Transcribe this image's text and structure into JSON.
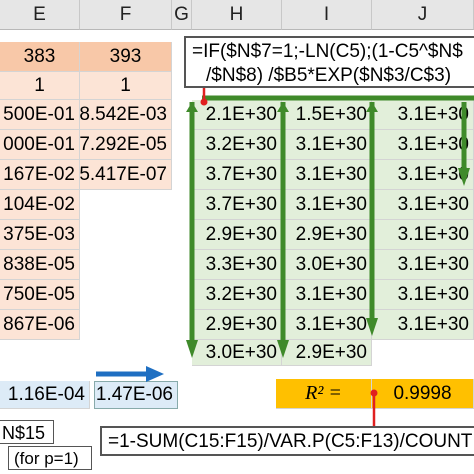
{
  "headers": {
    "E": "E",
    "F": "F",
    "G": "G",
    "H": "H",
    "I": "I",
    "J": "J"
  },
  "row_top": {
    "e": "383",
    "f": "393"
  },
  "row_ones": {
    "e": "1",
    "f": "1"
  },
  "col_e": [
    "500E-01",
    "000E-01",
    "167E-02",
    "104E-02",
    "375E-03",
    "838E-05",
    "750E-05",
    "867E-06"
  ],
  "col_f": [
    "8.542E-03",
    "7.292E-05",
    "5.417E-07"
  ],
  "col_h": [
    "2.1E+30",
    "3.2E+30",
    "3.7E+30",
    "3.7E+30",
    "2.9E+30",
    "3.3E+30",
    "3.2E+30",
    "2.9E+30",
    "3.0E+30"
  ],
  "col_i": [
    "1.5E+30",
    "3.1E+30",
    "3.1E+30",
    "3.1E+30",
    "2.9E+30",
    "3.0E+30",
    "3.1E+30",
    "3.1E+30",
    "2.9E+30"
  ],
  "col_j": [
    "3.1E+30",
    "3.1E+30",
    "3.1E+30",
    "3.1E+30",
    "3.1E+30",
    "3.1E+30",
    "3.1E+30",
    "3.1E+30"
  ],
  "formula_top": {
    "line1": "=IF($N$7=1;-LN(C5);(1-C5^$N$",
    "line2": "/$N$8) /$B5*EXP($N$3/C$3)"
  },
  "bottom_row": {
    "e": "1.16E-04",
    "f": "1.47E-06"
  },
  "r2": {
    "label": "R² =",
    "value": "0.9998"
  },
  "left_ref": "N$15",
  "for_p": "(for p=1)",
  "formula_bottom": "=1-SUM(C15:F15)/VAR.P(C5:F13)/COUNT",
  "colors": {
    "arrow_green": "#3f8a2a",
    "arrow_blue": "#1f6fc2",
    "pointer_red": "#e02020"
  }
}
